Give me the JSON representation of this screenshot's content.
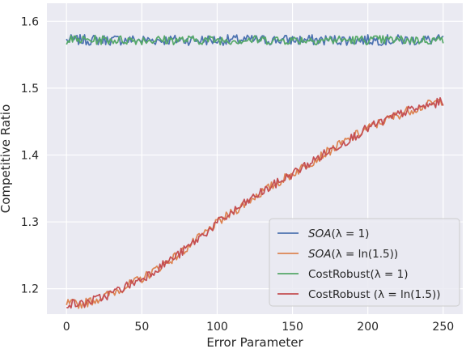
{
  "chart_data": {
    "type": "line",
    "xlabel": "Error Parameter",
    "ylabel": "Competitive Ratio",
    "xlim": [
      -13,
      263
    ],
    "ylim": [
      1.162,
      1.627
    ],
    "x_ticks": [
      0,
      50,
      100,
      150,
      200,
      250
    ],
    "x_tick_labels": [
      "0",
      "50",
      "100",
      "150",
      "200",
      "250"
    ],
    "y_ticks": [
      1.2,
      1.3,
      1.4,
      1.5,
      1.6
    ],
    "y_tick_labels": [
      "1.2",
      "1.3",
      "1.4",
      "1.5",
      "1.6"
    ],
    "grid": true,
    "legend_position": "bottom-right",
    "background": "#eaeaf2",
    "series": [
      {
        "name": "SOA(λ = 1)",
        "color": "#4c72b0",
        "x": [
          0,
          250
        ],
        "y": [
          1.572,
          1.572
        ],
        "noise": 0.008
      },
      {
        "name": "SOA(λ = ln(1.5))",
        "color": "#dd8452",
        "x": [
          0,
          10,
          25,
          50,
          75,
          100,
          125,
          150,
          175,
          200,
          225,
          250
        ],
        "y": [
          1.178,
          1.177,
          1.188,
          1.215,
          1.252,
          1.298,
          1.338,
          1.372,
          1.407,
          1.44,
          1.465,
          1.482
        ],
        "noise": 0.007
      },
      {
        "name": "CostRobust(λ = 1)",
        "color": "#55a868",
        "x": [
          0,
          250
        ],
        "y": [
          1.572,
          1.572
        ],
        "noise": 0.007
      },
      {
        "name": "CostRobust (λ = ln(1.5))",
        "color": "#c44e52",
        "x": [
          0,
          10,
          25,
          50,
          75,
          100,
          125,
          150,
          175,
          200,
          225,
          250
        ],
        "y": [
          1.178,
          1.177,
          1.188,
          1.215,
          1.252,
          1.298,
          1.338,
          1.372,
          1.407,
          1.44,
          1.465,
          1.48
        ],
        "noise": 0.007
      }
    ],
    "legend": [
      {
        "prefix": "SOA",
        "prefix_italic": true,
        "args": "(λ = 1)"
      },
      {
        "prefix": "SOA",
        "prefix_italic": true,
        "args": "(λ = ln(1.5))"
      },
      {
        "prefix": "CostRobust",
        "prefix_italic": false,
        "args": "(λ = 1)"
      },
      {
        "prefix": "CostRobust ",
        "prefix_italic": false,
        "args": "(λ = ln(1.5))"
      }
    ]
  }
}
